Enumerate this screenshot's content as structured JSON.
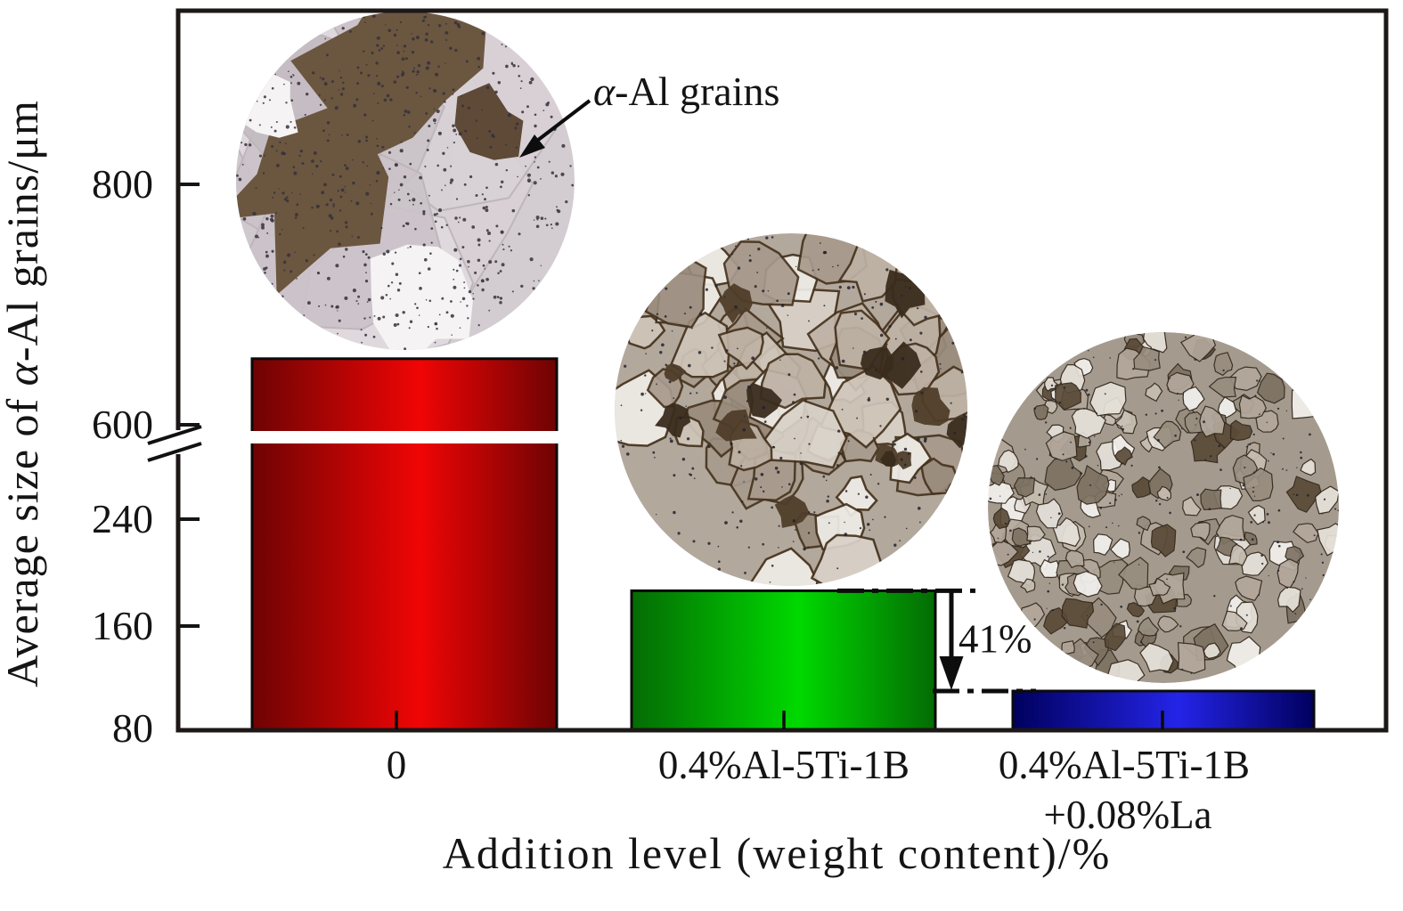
{
  "figure": {
    "type": "bar-chart-with-micrograph-insets",
    "y_axis": {
      "label": "Average size of α-Al grains/μm",
      "label_parts": {
        "pre": "Average size of ",
        "alpha": "α",
        "post": "-Al grains/μm"
      },
      "tick_labels": [
        "800",
        "600",
        "240",
        "160",
        "80"
      ],
      "has_break": true
    },
    "x_axis": {
      "label": "Addition level (weight content)/%",
      "category_lines": [
        "0",
        "0.4%Al-5Ti-1B",
        "0.4%Al-5Ti-1B",
        "+0.08%La"
      ]
    },
    "annotations": {
      "grains_alpha": "α",
      "grains_rest": "-Al grains",
      "reduction": "41%"
    }
  },
  "chart_data": {
    "type": "bar",
    "categories": [
      "0",
      "0.4%Al-5Ti-1B",
      "0.4%Al-5Ti-1B +0.08%La"
    ],
    "values": [
      655,
      185,
      108
    ],
    "xlabel": "Addition level (weight content)/%",
    "ylabel": "Average size of α-Al grains/μm",
    "y_ticks": [
      80,
      160,
      240,
      600,
      800
    ],
    "axis_break": {
      "between": [
        310,
        585
      ]
    },
    "y_segments": {
      "lower": [
        78,
        310
      ],
      "upper": [
        585,
        944
      ]
    },
    "grid": false,
    "legend": false,
    "annotations": [
      {
        "text": "α-Al grains"
      },
      {
        "text": "41%"
      }
    ],
    "bar_gradients": [
      {
        "edge": "#6e0303",
        "center": "#f00505"
      },
      {
        "edge": "#046b04",
        "center": "#00d900"
      },
      {
        "edge": "#00005e",
        "center": "#2424e8"
      }
    ],
    "bar_outline": "#0a0a0a"
  },
  "micrographs": [
    {
      "name": "coarse-grains-micrograph",
      "grain_size": "coarse",
      "base": "#d3ccd0",
      "palette": [
        "#d8d1d5",
        "#cbc3c9",
        "#e0dade",
        "#c3bbc1",
        "#cfc8cc"
      ],
      "dark": [
        "#5e4a37",
        "#6b5640"
      ],
      "white": "#f5f3f4",
      "speckle": "#35303b"
    },
    {
      "name": "medium-grains-micrograph",
      "grain_size": "medium",
      "base": "#b3a89c",
      "palette": [
        "#cfc5b9",
        "#beb2a5",
        "#a89b8d",
        "#d9d2c8",
        "#efece7",
        "#998c7d"
      ],
      "dark": [
        "#4f3d29",
        "#3a2c1d"
      ],
      "boundary": "#46341f",
      "speckle": "#23222e"
    },
    {
      "name": "fine-grains-micrograph",
      "grain_size": "fine",
      "base": "#a49a8e",
      "palette": [
        "#c7beb2",
        "#b2a89b",
        "#988d7f",
        "#e5e1da",
        "#f3f1ee",
        "#7d7162",
        "#5a4a38"
      ],
      "dark": [
        "#46381f"
      ],
      "boundary": "#32281c",
      "speckle": "#20202c"
    }
  ]
}
